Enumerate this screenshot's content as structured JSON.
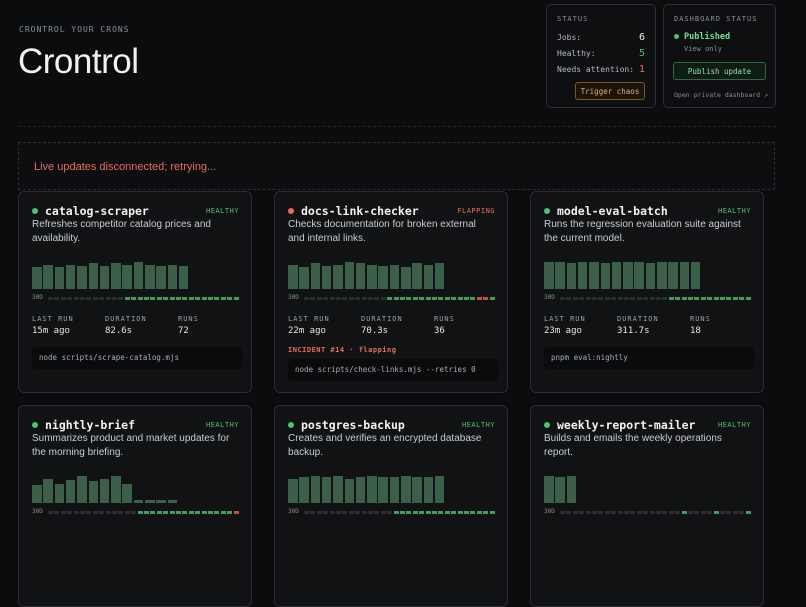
{
  "header": {
    "eyebrow": "CRONTROL YOUR CRONS",
    "title": "Crontrol"
  },
  "status": {
    "title": "STATUS",
    "rows": [
      {
        "label": "Jobs:",
        "value": "6",
        "tone": "white"
      },
      {
        "label": "Healthy:",
        "value": "5",
        "tone": "green"
      },
      {
        "label": "Needs attention:",
        "value": "1",
        "tone": "red"
      }
    ],
    "chaos_label": "Trigger chaos"
  },
  "dashboard": {
    "title": "DASHBOARD STATUS",
    "state": "Published",
    "mode": "View only",
    "publish_label": "Publish update",
    "open_link": "Open private dashboard ↗"
  },
  "banner": {
    "text": "Live updates disconnected; retrying..."
  },
  "metric_labels": {
    "last_run": "LAST RUN",
    "duration": "DURATION",
    "runs": "RUNS"
  },
  "strip_label": "30D",
  "colors": {
    "healthy": "#4fbf73",
    "flapping": "#ec6b5b",
    "bar": "#3b5f48",
    "ok": "#3f9d5c",
    "empty": "#2a2e32",
    "fail": "#c5523f"
  },
  "jobs": [
    {
      "name": "catalog-scraper",
      "state": "HEALTHY",
      "status": "healthy",
      "desc": "Refreshes competitor catalog prices and availability.",
      "last_run": "15m ago",
      "duration": "82.6s",
      "runs": "72",
      "cmd": "node scripts/scrape-catalog.mjs",
      "incident": "",
      "bars": [
        0.8,
        0.9,
        0.8,
        0.9,
        0.85,
        0.95,
        0.85,
        0.95,
        0.9,
        1.0,
        0.9,
        0.85,
        0.9,
        0.85
      ],
      "strip": [
        0,
        0,
        0,
        0,
        0,
        0,
        0,
        0,
        0,
        0,
        0,
        0,
        1,
        1,
        1,
        1,
        1,
        1,
        1,
        1,
        1,
        1,
        1,
        1,
        1,
        1,
        1,
        1,
        1,
        1
      ]
    },
    {
      "name": "docs-link-checker",
      "state": "FLAPPING",
      "status": "flapping",
      "desc": "Checks documentation for broken external and internal links.",
      "last_run": "22m ago",
      "duration": "70.3s",
      "runs": "36",
      "cmd": "node scripts/check-links.mjs --retries 0",
      "incident": "INCIDENT #14 · flapping",
      "bars": [
        0.9,
        0.8,
        0.95,
        0.85,
        0.9,
        1.0,
        0.95,
        0.9,
        0.85,
        0.9,
        0.8,
        0.95,
        0.9,
        0.95
      ],
      "strip": [
        0,
        0,
        0,
        0,
        0,
        0,
        0,
        0,
        0,
        0,
        0,
        0,
        0,
        1,
        1,
        1,
        1,
        1,
        1,
        1,
        1,
        1,
        1,
        1,
        1,
        1,
        1,
        2,
        2,
        1
      ]
    },
    {
      "name": "model-eval-batch",
      "state": "HEALTHY",
      "status": "healthy",
      "desc": "Runs the regression evaluation suite against the current model.",
      "last_run": "23m ago",
      "duration": "311.7s",
      "runs": "18",
      "cmd": "pnpm eval:nightly",
      "incident": "",
      "bars": [
        1.0,
        1.0,
        0.95,
        1.0,
        1.0,
        0.95,
        1.0,
        1.0,
        1.0,
        0.95,
        1.0,
        1.0,
        1.0,
        1.0
      ],
      "strip": [
        0,
        0,
        0,
        0,
        0,
        0,
        0,
        0,
        0,
        0,
        0,
        0,
        0,
        0,
        0,
        0,
        0,
        1,
        1,
        1,
        1,
        1,
        1,
        1,
        1,
        1,
        1,
        1,
        1,
        1
      ]
    },
    {
      "name": "nightly-brief",
      "state": "HEALTHY",
      "status": "healthy",
      "desc": "Summarizes product and market updates for the morning briefing.",
      "last_run": "",
      "duration": "",
      "runs": "",
      "cmd": "",
      "incident": "",
      "bars": [
        0.65,
        0.9,
        0.7,
        0.85,
        1.0,
        0.8,
        0.9,
        1.0,
        0.7,
        0.12,
        0.12,
        0.12,
        0.12
      ],
      "strip": [
        0,
        0,
        0,
        0,
        0,
        0,
        0,
        0,
        0,
        0,
        0,
        0,
        0,
        0,
        1,
        1,
        1,
        1,
        1,
        1,
        1,
        1,
        1,
        1,
        1,
        1,
        1,
        1,
        1,
        2
      ]
    },
    {
      "name": "postgres-backup",
      "state": "HEALTHY",
      "status": "healthy",
      "desc": "Creates and verifies an encrypted database backup.",
      "last_run": "",
      "duration": "",
      "runs": "",
      "cmd": "",
      "incident": "",
      "bars": [
        0.9,
        0.95,
        1.0,
        0.95,
        1.0,
        0.9,
        0.95,
        1.0,
        0.95,
        0.95,
        1.0,
        0.95,
        0.95,
        1.0
      ],
      "strip": [
        0,
        0,
        0,
        0,
        0,
        0,
        0,
        0,
        0,
        0,
        0,
        0,
        0,
        0,
        1,
        1,
        1,
        1,
        1,
        1,
        1,
        1,
        1,
        1,
        1,
        1,
        1,
        1,
        1,
        1
      ]
    },
    {
      "name": "weekly-report-mailer",
      "state": "HEALTHY",
      "status": "healthy",
      "desc": "Builds and emails the weekly operations report.",
      "last_run": "",
      "duration": "",
      "runs": "",
      "cmd": "",
      "incident": "",
      "bars": [
        1.0,
        0.95,
        1.0
      ],
      "strip": [
        0,
        0,
        0,
        0,
        0,
        0,
        0,
        0,
        0,
        0,
        0,
        0,
        0,
        0,
        0,
        0,
        0,
        0,
        0,
        1,
        0,
        0,
        0,
        0,
        1,
        0,
        0,
        0,
        0,
        1
      ]
    }
  ]
}
